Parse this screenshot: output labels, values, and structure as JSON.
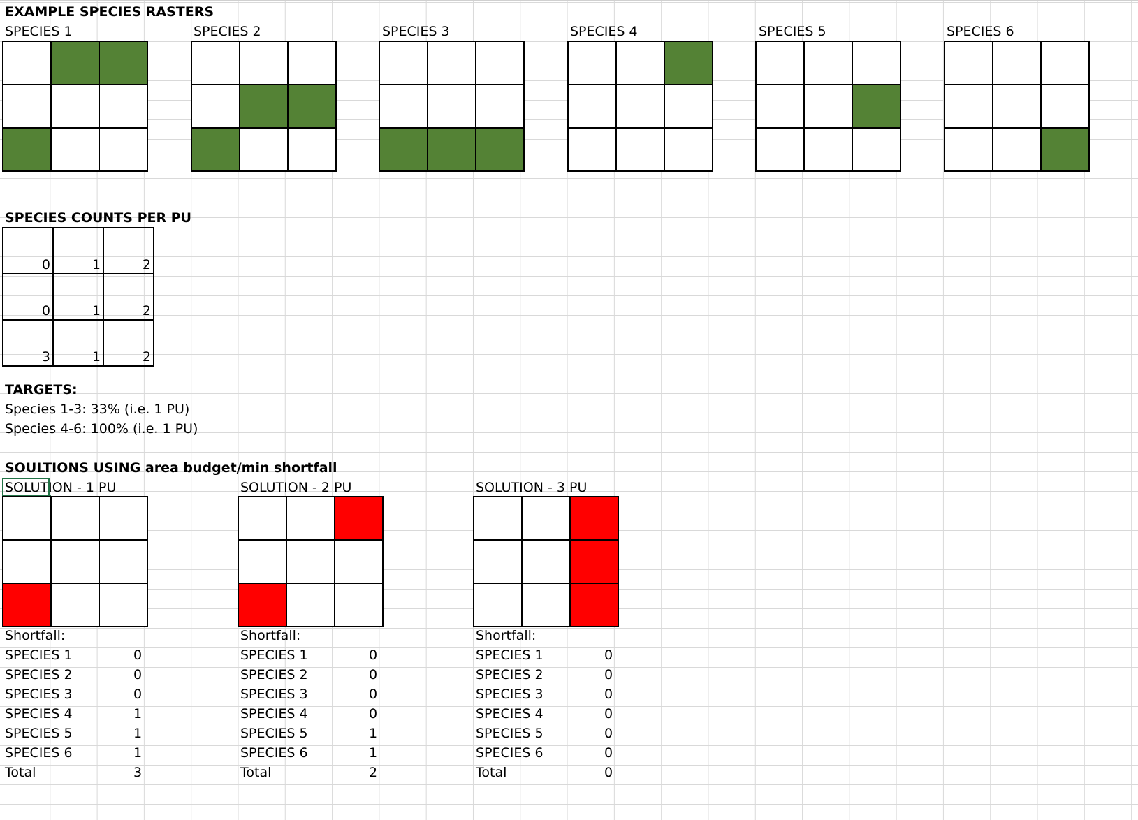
{
  "header": "EXAMPLE SPECIES RASTERS",
  "colors": {
    "species_fill": "#548235",
    "solution_fill": "#ff0000",
    "gridline": "#d9d9d9",
    "selection": "#217346"
  },
  "species_rasters": [
    {
      "label": "SPECIES 1",
      "cells": [
        0,
        1,
        1,
        0,
        0,
        0,
        1,
        0,
        0
      ]
    },
    {
      "label": "SPECIES 2",
      "cells": [
        0,
        0,
        0,
        0,
        1,
        1,
        1,
        0,
        0
      ]
    },
    {
      "label": "SPECIES 3",
      "cells": [
        0,
        0,
        0,
        0,
        0,
        0,
        1,
        1,
        1
      ]
    },
    {
      "label": "SPECIES 4",
      "cells": [
        0,
        0,
        1,
        0,
        0,
        0,
        0,
        0,
        0
      ]
    },
    {
      "label": "SPECIES 5",
      "cells": [
        0,
        0,
        0,
        0,
        0,
        1,
        0,
        0,
        0
      ]
    },
    {
      "label": "SPECIES 6",
      "cells": [
        0,
        0,
        0,
        0,
        0,
        0,
        0,
        0,
        1
      ]
    }
  ],
  "counts": {
    "title": "SPECIES COUNTS PER PU",
    "values": [
      "0",
      "1",
      "2",
      "0",
      "1",
      "2",
      "3",
      "1",
      "2"
    ]
  },
  "targets": {
    "title": "TARGETS:",
    "line1": "Species 1-3: 33% (i.e. 1 PU)",
    "line2": "Species 4-6: 100% (i.e. 1 PU)"
  },
  "solutions_title": "SOULTIONS USING area budget/min shortfall",
  "solutions": [
    {
      "label": "SOLUTION - 1 PU",
      "cells": [
        0,
        0,
        0,
        0,
        0,
        0,
        1,
        0,
        0
      ],
      "shortfall_label": "Shortfall:",
      "rows": [
        {
          "name": "SPECIES 1",
          "value": "0"
        },
        {
          "name": "SPECIES 2",
          "value": "0"
        },
        {
          "name": "SPECIES 3",
          "value": "0"
        },
        {
          "name": "SPECIES 4",
          "value": "1"
        },
        {
          "name": "SPECIES 5",
          "value": "1"
        },
        {
          "name": "SPECIES 6",
          "value": "1"
        },
        {
          "name": "Total",
          "value": "3"
        }
      ]
    },
    {
      "label": "SOLUTION - 2 PU",
      "cells": [
        0,
        0,
        1,
        0,
        0,
        0,
        1,
        0,
        0
      ],
      "shortfall_label": "Shortfall:",
      "rows": [
        {
          "name": "SPECIES 1",
          "value": "0"
        },
        {
          "name": "SPECIES 2",
          "value": "0"
        },
        {
          "name": "SPECIES 3",
          "value": "0"
        },
        {
          "name": "SPECIES 4",
          "value": "0"
        },
        {
          "name": "SPECIES 5",
          "value": "1"
        },
        {
          "name": "SPECIES 6",
          "value": "1"
        },
        {
          "name": "Total",
          "value": "2"
        }
      ]
    },
    {
      "label": "SOLUTION - 3 PU",
      "cells": [
        0,
        0,
        1,
        0,
        0,
        1,
        0,
        0,
        1
      ],
      "shortfall_label": "Shortfall:",
      "rows": [
        {
          "name": "SPECIES 1",
          "value": "0"
        },
        {
          "name": "SPECIES 2",
          "value": "0"
        },
        {
          "name": "SPECIES 3",
          "value": "0"
        },
        {
          "name": "SPECIES 4",
          "value": "0"
        },
        {
          "name": "SPECIES 5",
          "value": "0"
        },
        {
          "name": "SPECIES 6",
          "value": "0"
        },
        {
          "name": "Total",
          "value": "0"
        }
      ]
    }
  ]
}
